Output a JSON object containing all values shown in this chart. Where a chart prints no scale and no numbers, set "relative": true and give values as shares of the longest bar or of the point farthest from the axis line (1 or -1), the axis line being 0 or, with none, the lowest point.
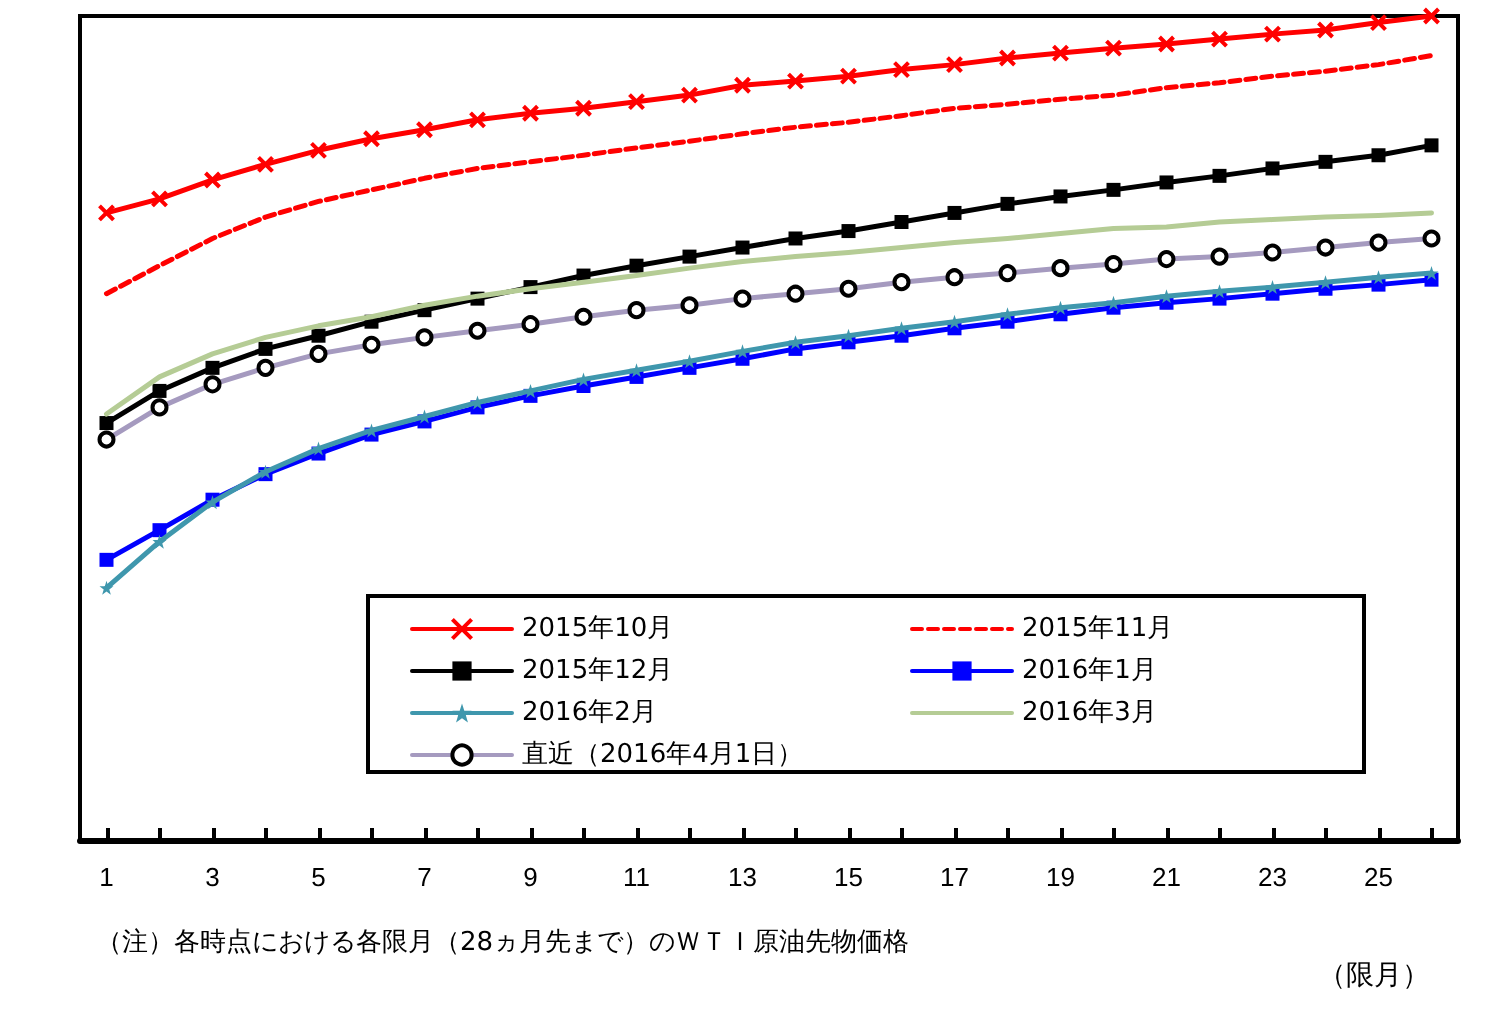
{
  "chart_data": {
    "type": "line",
    "relative": true,
    "xlabel": "（限月）",
    "annotations": [
      "（注）各時点における各限月（28ヵ月先まで）のＷＴＩ原油先物価格"
    ],
    "x": [
      1,
      2,
      3,
      4,
      5,
      6,
      7,
      8,
      9,
      10,
      11,
      12,
      13,
      14,
      15,
      16,
      17,
      18,
      19,
      20,
      21,
      22,
      23,
      24,
      25,
      26
    ],
    "xlim": [
      0.5,
      26.5
    ],
    "xticks": [
      1,
      {
        "value": 2,
        "label": null
      },
      3,
      {
        "value": 4,
        "label": null
      },
      5,
      {
        "value": 6,
        "label": null
      },
      7,
      {
        "value": 8,
        "label": null
      },
      9,
      {
        "value": 10,
        "label": null
      },
      11,
      {
        "value": 12,
        "label": null
      },
      13,
      {
        "value": 14,
        "label": null
      },
      15,
      {
        "value": 16,
        "label": null
      },
      17,
      {
        "value": 18,
        "label": null
      },
      19,
      {
        "value": 20,
        "label": null
      },
      21,
      {
        "value": 22,
        "label": null
      },
      23,
      {
        "value": 24,
        "label": null
      },
      25,
      {
        "value": 26,
        "label": null
      }
    ],
    "grid": false,
    "legend": "bottom",
    "series": [
      {
        "name": "2015年10月",
        "color": "#ff0000",
        "marker": "cross",
        "line_style": "solid",
        "values": [
          0.761,
          0.778,
          0.801,
          0.82,
          0.837,
          0.851,
          0.862,
          0.874,
          0.882,
          0.888,
          0.896,
          0.904,
          0.916,
          0.921,
          0.927,
          0.935,
          0.941,
          0.949,
          0.955,
          0.961,
          0.966,
          0.972,
          0.978,
          0.983,
          0.992,
          1
        ]
      },
      {
        "name": "2015年11月",
        "color": "#ff0000",
        "marker": "none",
        "line_style": "dashed",
        "values": [
          0.663,
          0.697,
          0.73,
          0.756,
          0.775,
          0.789,
          0.803,
          0.815,
          0.823,
          0.831,
          0.84,
          0.848,
          0.857,
          0.865,
          0.871,
          0.879,
          0.888,
          0.893,
          0.899,
          0.904,
          0.913,
          0.919,
          0.927,
          0.933,
          0.941,
          0.952
        ]
      },
      {
        "name": "2015年12月",
        "color": "#000000",
        "marker": "square",
        "line_style": "solid",
        "values": [
          0.506,
          0.545,
          0.573,
          0.596,
          0.612,
          0.629,
          0.643,
          0.657,
          0.671,
          0.685,
          0.697,
          0.708,
          0.719,
          0.73,
          0.739,
          0.75,
          0.761,
          0.772,
          0.781,
          0.789,
          0.798,
          0.806,
          0.815,
          0.823,
          0.831,
          0.843
        ]
      },
      {
        "name": "2016年1月",
        "color": "#0000ff",
        "marker": "square",
        "line_style": "solid",
        "values": [
          0.34,
          0.376,
          0.413,
          0.444,
          0.469,
          0.492,
          0.508,
          0.525,
          0.539,
          0.551,
          0.562,
          0.573,
          0.584,
          0.596,
          0.604,
          0.612,
          0.621,
          0.629,
          0.638,
          0.646,
          0.652,
          0.657,
          0.663,
          0.669,
          0.674,
          0.68
        ]
      },
      {
        "name": "2016年2月",
        "color": "#3f97ad",
        "marker": "star",
        "line_style": "solid",
        "values": [
          0.306,
          0.362,
          0.41,
          0.447,
          0.475,
          0.497,
          0.514,
          0.531,
          0.545,
          0.559,
          0.57,
          0.581,
          0.593,
          0.604,
          0.612,
          0.621,
          0.629,
          0.638,
          0.646,
          0.652,
          0.66,
          0.666,
          0.671,
          0.677,
          0.683,
          0.688
        ]
      },
      {
        "name": "2016年3月",
        "color": "#b5cc95",
        "marker": "none",
        "line_style": "solid",
        "values": [
          0.517,
          0.562,
          0.59,
          0.61,
          0.624,
          0.635,
          0.649,
          0.66,
          0.669,
          0.677,
          0.685,
          0.694,
          0.702,
          0.708,
          0.713,
          0.719,
          0.725,
          0.73,
          0.736,
          0.742,
          0.744,
          0.75,
          0.753,
          0.756,
          0.758,
          0.761
        ]
      },
      {
        "name": "直近（2016年4月1日）",
        "color": "#a59abf",
        "marker": "circle",
        "line_style": "solid",
        "values": [
          0.486,
          0.525,
          0.553,
          0.573,
          0.59,
          0.601,
          0.61,
          0.618,
          0.626,
          0.635,
          0.643,
          0.649,
          0.657,
          0.663,
          0.669,
          0.677,
          0.683,
          0.688,
          0.694,
          0.699,
          0.705,
          0.708,
          0.713,
          0.719,
          0.725,
          0.73
        ]
      }
    ]
  }
}
